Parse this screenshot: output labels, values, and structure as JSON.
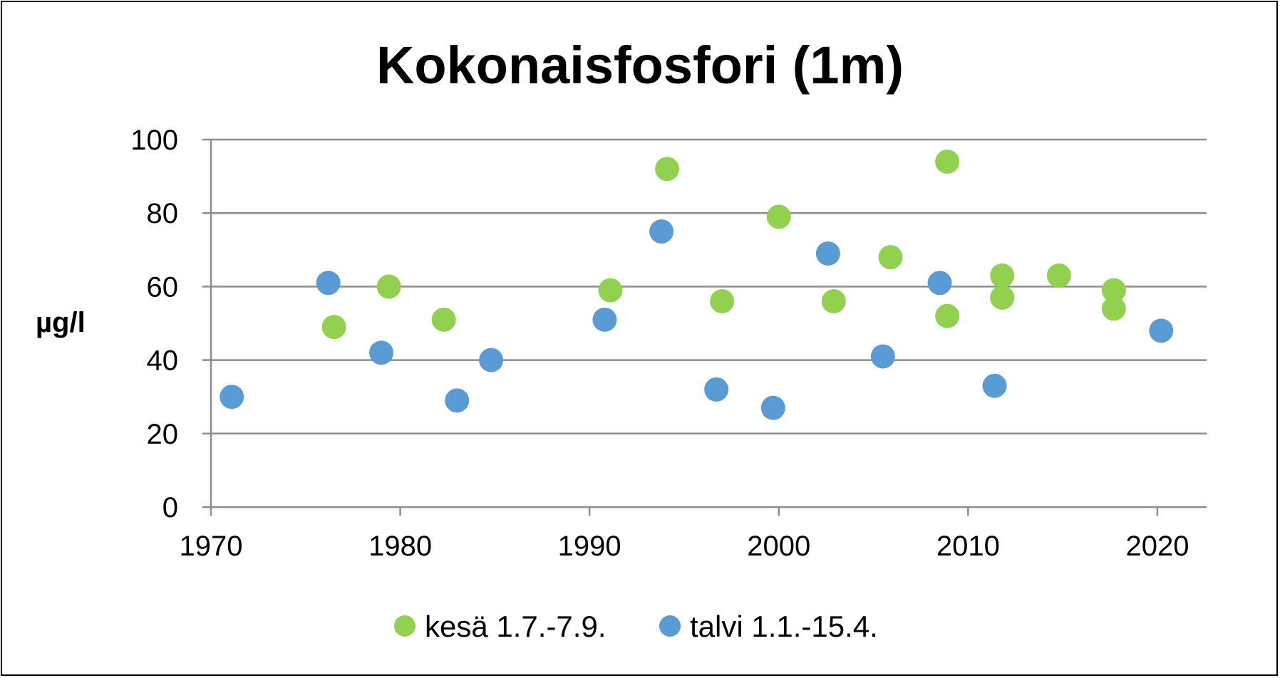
{
  "chart_data": {
    "type": "scatter",
    "title": "Kokonaisfosfori (1m)",
    "xlabel": "",
    "ylabel": "µg/l",
    "xlim": [
      1970,
      2022.6
    ],
    "ylim": [
      0,
      100
    ],
    "x_ticks": [
      1970,
      1980,
      1990,
      2000,
      2010,
      2020
    ],
    "y_ticks": [
      0,
      20,
      40,
      60,
      80,
      100
    ],
    "grid": "horizontal",
    "legend_position": "bottom",
    "series": [
      {
        "name": "kesä 1.7.-7.9.",
        "color": "#92d050",
        "points": [
          {
            "x": 1976.5,
            "y": 49
          },
          {
            "x": 1979.4,
            "y": 60
          },
          {
            "x": 1982.3,
            "y": 51
          },
          {
            "x": 1991.1,
            "y": 59
          },
          {
            "x": 1994.1,
            "y": 92
          },
          {
            "x": 1997.0,
            "y": 56
          },
          {
            "x": 2000.0,
            "y": 79
          },
          {
            "x": 2002.9,
            "y": 56
          },
          {
            "x": 2005.9,
            "y": 68
          },
          {
            "x": 2008.9,
            "y": 52
          },
          {
            "x": 2008.9,
            "y": 94
          },
          {
            "x": 2011.8,
            "y": 63
          },
          {
            "x": 2011.8,
            "y": 57
          },
          {
            "x": 2014.8,
            "y": 63
          },
          {
            "x": 2017.7,
            "y": 59
          },
          {
            "x": 2017.7,
            "y": 54
          }
        ]
      },
      {
        "name": "talvi 1.1.-15.4.",
        "color": "#5b9bd5",
        "points": [
          {
            "x": 1971.1,
            "y": 30
          },
          {
            "x": 1976.2,
            "y": 61
          },
          {
            "x": 1979.0,
            "y": 42
          },
          {
            "x": 1983.0,
            "y": 29
          },
          {
            "x": 1984.8,
            "y": 40
          },
          {
            "x": 1990.8,
            "y": 51
          },
          {
            "x": 1993.8,
            "y": 75
          },
          {
            "x": 1996.7,
            "y": 32
          },
          {
            "x": 1999.7,
            "y": 27
          },
          {
            "x": 2002.6,
            "y": 69
          },
          {
            "x": 2005.5,
            "y": 41
          },
          {
            "x": 2008.5,
            "y": 61
          },
          {
            "x": 2011.4,
            "y": 33
          },
          {
            "x": 2020.2,
            "y": 48
          }
        ]
      }
    ]
  }
}
